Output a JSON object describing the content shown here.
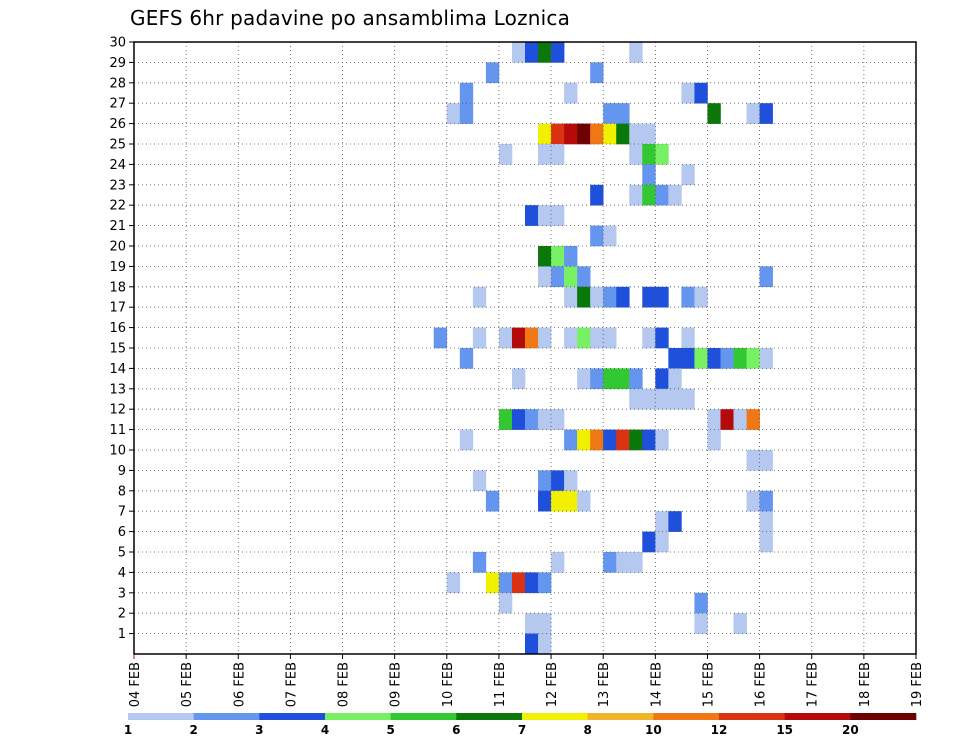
{
  "chart_data": {
    "type": "heatmap",
    "title": "GEFS 6hr padavine po ansamblima Loznica",
    "xlabel": "",
    "ylabel": "",
    "x_ticks": [
      "04 FEB",
      "05 FEB",
      "06 FEB",
      "07 FEB",
      "08 FEB",
      "09 FEB",
      "10 FEB",
      "11 FEB",
      "12 FEB",
      "13 FEB",
      "14 FEB",
      "15 FEB",
      "16 FEB",
      "17 FEB",
      "18 FEB",
      "19 FEB"
    ],
    "y_ticks": [
      "1",
      "2",
      "3",
      "4",
      "5",
      "6",
      "7",
      "8",
      "9",
      "10",
      "11",
      "12",
      "13",
      "14",
      "15",
      "16",
      "17",
      "18",
      "19",
      "20",
      "21",
      "22",
      "23",
      "24",
      "25",
      "26",
      "27",
      "28",
      "29",
      "30"
    ],
    "xlim": [
      0,
      60
    ],
    "ylim": [
      0,
      30
    ],
    "x_step": "6hr",
    "grid": true,
    "legend": {
      "placement": "bottom",
      "labels": [
        "1",
        "2",
        "3",
        "4",
        "5",
        "6",
        "7",
        "8",
        "10",
        "12",
        "15",
        "20"
      ],
      "colors": [
        "#b4c8f0",
        "#6496f0",
        "#1e50dc",
        "#78f064",
        "#32c832",
        "#0a780a",
        "#f0f000",
        "#f0b428",
        "#f07814",
        "#dc3214",
        "#b40a0a",
        "#6e0000"
      ]
    },
    "cells": [
      {
        "x": 29,
        "y": 30,
        "c": 1
      },
      {
        "x": 30,
        "y": 30,
        "c": 3
      },
      {
        "x": 31,
        "y": 30,
        "c": 6
      },
      {
        "x": 32,
        "y": 30,
        "c": 3
      },
      {
        "x": 38,
        "y": 30,
        "c": 1
      },
      {
        "x": 27,
        "y": 29,
        "c": 2
      },
      {
        "x": 35,
        "y": 29,
        "c": 2
      },
      {
        "x": 25,
        "y": 28,
        "c": 2
      },
      {
        "x": 33,
        "y": 28,
        "c": 1
      },
      {
        "x": 42,
        "y": 28,
        "c": 1
      },
      {
        "x": 43,
        "y": 28,
        "c": 3
      },
      {
        "x": 24,
        "y": 27,
        "c": 1
      },
      {
        "x": 25,
        "y": 27,
        "c": 2
      },
      {
        "x": 36,
        "y": 27,
        "c": 2
      },
      {
        "x": 37,
        "y": 27,
        "c": 2
      },
      {
        "x": 44,
        "y": 27,
        "c": 6
      },
      {
        "x": 47,
        "y": 27,
        "c": 1
      },
      {
        "x": 48,
        "y": 27,
        "c": 3
      },
      {
        "x": 31,
        "y": 26,
        "c": 7
      },
      {
        "x": 32,
        "y": 26,
        "c": 10
      },
      {
        "x": 33,
        "y": 26,
        "c": 11
      },
      {
        "x": 34,
        "y": 26,
        "c": 12
      },
      {
        "x": 35,
        "y": 26,
        "c": 9
      },
      {
        "x": 36,
        "y": 26,
        "c": 7
      },
      {
        "x": 37,
        "y": 26,
        "c": 6
      },
      {
        "x": 38,
        "y": 26,
        "c": 1
      },
      {
        "x": 39,
        "y": 26,
        "c": 1
      },
      {
        "x": 28,
        "y": 25,
        "c": 1
      },
      {
        "x": 31,
        "y": 25,
        "c": 1
      },
      {
        "x": 32,
        "y": 25,
        "c": 1
      },
      {
        "x": 38,
        "y": 25,
        "c": 1
      },
      {
        "x": 39,
        "y": 25,
        "c": 5
      },
      {
        "x": 40,
        "y": 25,
        "c": 4
      },
      {
        "x": 39,
        "y": 24,
        "c": 2
      },
      {
        "x": 42,
        "y": 24,
        "c": 1
      },
      {
        "x": 35,
        "y": 23,
        "c": 3
      },
      {
        "x": 38,
        "y": 23,
        "c": 1
      },
      {
        "x": 39,
        "y": 23,
        "c": 5
      },
      {
        "x": 40,
        "y": 23,
        "c": 2
      },
      {
        "x": 41,
        "y": 23,
        "c": 1
      },
      {
        "x": 30,
        "y": 22,
        "c": 3
      },
      {
        "x": 31,
        "y": 22,
        "c": 1
      },
      {
        "x": 32,
        "y": 22,
        "c": 1
      },
      {
        "x": 35,
        "y": 21,
        "c": 2
      },
      {
        "x": 36,
        "y": 21,
        "c": 1
      },
      {
        "x": 31,
        "y": 20,
        "c": 6
      },
      {
        "x": 32,
        "y": 20,
        "c": 4
      },
      {
        "x": 33,
        "y": 20,
        "c": 2
      },
      {
        "x": 31,
        "y": 19,
        "c": 1
      },
      {
        "x": 32,
        "y": 19,
        "c": 2
      },
      {
        "x": 33,
        "y": 19,
        "c": 4
      },
      {
        "x": 34,
        "y": 19,
        "c": 2
      },
      {
        "x": 48,
        "y": 19,
        "c": 2
      },
      {
        "x": 26,
        "y": 18,
        "c": 1
      },
      {
        "x": 33,
        "y": 18,
        "c": 1
      },
      {
        "x": 34,
        "y": 18,
        "c": 6
      },
      {
        "x": 35,
        "y": 18,
        "c": 1
      },
      {
        "x": 36,
        "y": 18,
        "c": 2
      },
      {
        "x": 37,
        "y": 18,
        "c": 3
      },
      {
        "x": 39,
        "y": 18,
        "c": 3
      },
      {
        "x": 40,
        "y": 18,
        "c": 3
      },
      {
        "x": 42,
        "y": 18,
        "c": 2
      },
      {
        "x": 43,
        "y": 18,
        "c": 1
      },
      {
        "x": 23,
        "y": 16,
        "c": 2
      },
      {
        "x": 26,
        "y": 16,
        "c": 1
      },
      {
        "x": 28,
        "y": 16,
        "c": 1
      },
      {
        "x": 29,
        "y": 16,
        "c": 11
      },
      {
        "x": 30,
        "y": 16,
        "c": 9
      },
      {
        "x": 31,
        "y": 16,
        "c": 1
      },
      {
        "x": 33,
        "y": 16,
        "c": 1
      },
      {
        "x": 34,
        "y": 16,
        "c": 4
      },
      {
        "x": 35,
        "y": 16,
        "c": 1
      },
      {
        "x": 36,
        "y": 16,
        "c": 1
      },
      {
        "x": 39,
        "y": 16,
        "c": 1
      },
      {
        "x": 40,
        "y": 16,
        "c": 3
      },
      {
        "x": 42,
        "y": 16,
        "c": 1
      },
      {
        "x": 25,
        "y": 15,
        "c": 2
      },
      {
        "x": 41,
        "y": 15,
        "c": 3
      },
      {
        "x": 42,
        "y": 15,
        "c": 3
      },
      {
        "x": 43,
        "y": 15,
        "c": 4
      },
      {
        "x": 44,
        "y": 15,
        "c": 3
      },
      {
        "x": 45,
        "y": 15,
        "c": 2
      },
      {
        "x": 46,
        "y": 15,
        "c": 5
      },
      {
        "x": 47,
        "y": 15,
        "c": 4
      },
      {
        "x": 48,
        "y": 15,
        "c": 1
      },
      {
        "x": 29,
        "y": 14,
        "c": 1
      },
      {
        "x": 34,
        "y": 14,
        "c": 1
      },
      {
        "x": 35,
        "y": 14,
        "c": 2
      },
      {
        "x": 36,
        "y": 14,
        "c": 5
      },
      {
        "x": 37,
        "y": 14,
        "c": 5
      },
      {
        "x": 38,
        "y": 14,
        "c": 2
      },
      {
        "x": 40,
        "y": 14,
        "c": 3
      },
      {
        "x": 41,
        "y": 14,
        "c": 1
      },
      {
        "x": 38,
        "y": 13,
        "c": 1
      },
      {
        "x": 39,
        "y": 13,
        "c": 1
      },
      {
        "x": 40,
        "y": 13,
        "c": 1
      },
      {
        "x": 41,
        "y": 13,
        "c": 1
      },
      {
        "x": 42,
        "y": 13,
        "c": 1
      },
      {
        "x": 28,
        "y": 12,
        "c": 5
      },
      {
        "x": 29,
        "y": 12,
        "c": 3
      },
      {
        "x": 30,
        "y": 12,
        "c": 2
      },
      {
        "x": 31,
        "y": 12,
        "c": 1
      },
      {
        "x": 32,
        "y": 12,
        "c": 1
      },
      {
        "x": 44,
        "y": 12,
        "c": 1
      },
      {
        "x": 45,
        "y": 12,
        "c": 11
      },
      {
        "x": 46,
        "y": 12,
        "c": 1
      },
      {
        "x": 47,
        "y": 12,
        "c": 9
      },
      {
        "x": 25,
        "y": 11,
        "c": 1
      },
      {
        "x": 33,
        "y": 11,
        "c": 2
      },
      {
        "x": 34,
        "y": 11,
        "c": 7
      },
      {
        "x": 35,
        "y": 11,
        "c": 9
      },
      {
        "x": 36,
        "y": 11,
        "c": 3
      },
      {
        "x": 37,
        "y": 11,
        "c": 10
      },
      {
        "x": 38,
        "y": 11,
        "c": 6
      },
      {
        "x": 39,
        "y": 11,
        "c": 3
      },
      {
        "x": 40,
        "y": 11,
        "c": 1
      },
      {
        "x": 44,
        "y": 11,
        "c": 1
      },
      {
        "x": 47,
        "y": 10,
        "c": 1
      },
      {
        "x": 48,
        "y": 10,
        "c": 1
      },
      {
        "x": 26,
        "y": 9,
        "c": 1
      },
      {
        "x": 31,
        "y": 9,
        "c": 2
      },
      {
        "x": 32,
        "y": 9,
        "c": 3
      },
      {
        "x": 33,
        "y": 9,
        "c": 1
      },
      {
        "x": 27,
        "y": 8,
        "c": 2
      },
      {
        "x": 31,
        "y": 8,
        "c": 3
      },
      {
        "x": 32,
        "y": 8,
        "c": 7
      },
      {
        "x": 33,
        "y": 8,
        "c": 7
      },
      {
        "x": 34,
        "y": 8,
        "c": 1
      },
      {
        "x": 47,
        "y": 8,
        "c": 1
      },
      {
        "x": 48,
        "y": 8,
        "c": 2
      },
      {
        "x": 40,
        "y": 7,
        "c": 1
      },
      {
        "x": 41,
        "y": 7,
        "c": 3
      },
      {
        "x": 48,
        "y": 7,
        "c": 1
      },
      {
        "x": 39,
        "y": 6,
        "c": 3
      },
      {
        "x": 40,
        "y": 6,
        "c": 1
      },
      {
        "x": 48,
        "y": 6,
        "c": 1
      },
      {
        "x": 26,
        "y": 5,
        "c": 2
      },
      {
        "x": 32,
        "y": 5,
        "c": 1
      },
      {
        "x": 36,
        "y": 5,
        "c": 2
      },
      {
        "x": 37,
        "y": 5,
        "c": 1
      },
      {
        "x": 38,
        "y": 5,
        "c": 1
      },
      {
        "x": 24,
        "y": 4,
        "c": 1
      },
      {
        "x": 27,
        "y": 4,
        "c": 7
      },
      {
        "x": 28,
        "y": 4,
        "c": 2
      },
      {
        "x": 29,
        "y": 4,
        "c": 10
      },
      {
        "x": 30,
        "y": 4,
        "c": 3
      },
      {
        "x": 31,
        "y": 4,
        "c": 2
      },
      {
        "x": 28,
        "y": 3,
        "c": 1
      },
      {
        "x": 43,
        "y": 3,
        "c": 2
      },
      {
        "x": 30,
        "y": 2,
        "c": 1
      },
      {
        "x": 31,
        "y": 2,
        "c": 1
      },
      {
        "x": 43,
        "y": 2,
        "c": 1
      },
      {
        "x": 46,
        "y": 2,
        "c": 1
      },
      {
        "x": 30,
        "y": 1,
        "c": 3
      },
      {
        "x": 31,
        "y": 1,
        "c": 1
      }
    ]
  }
}
